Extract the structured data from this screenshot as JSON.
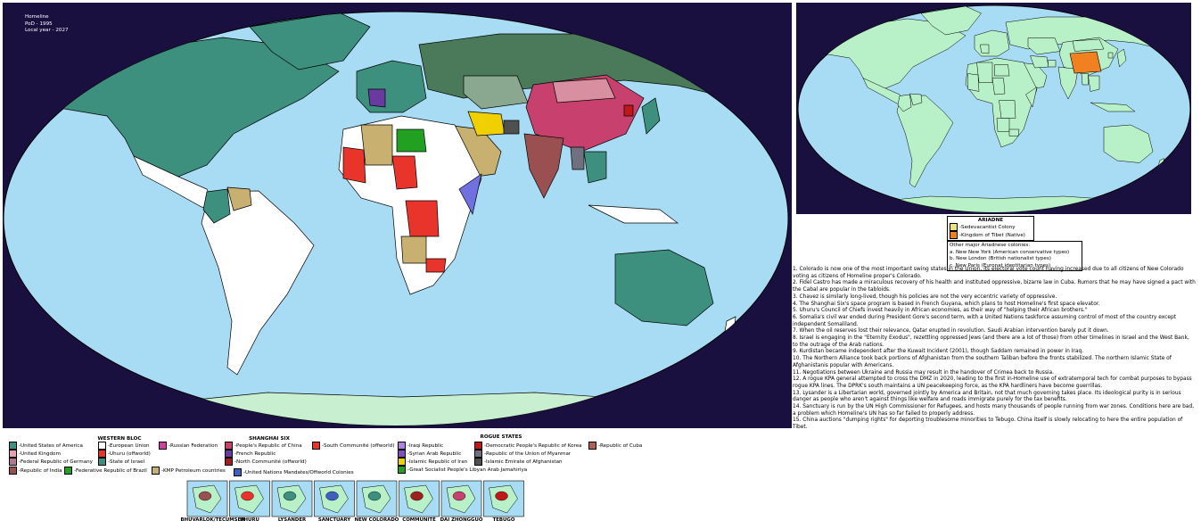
{
  "map_info": {
    "title": "Homeline",
    "pod": "PoD - 1995",
    "local_year": "Local year - 2027"
  },
  "ariadne": {
    "title": "ARIADNE",
    "entries": [
      {
        "label": "-Sedevacantist Colony",
        "color": "#f0e080"
      },
      {
        "label": "-Kingdom of Tibet (Native)",
        "color": "#f08020"
      }
    ],
    "other_heading": "Other major Ariadnese colonies:",
    "colonies": [
      "a. New New York (American conservative types)",
      "b. New London (British nationalist types)",
      "c. New Paris (Euronat identitarian types)"
    ]
  },
  "notes": [
    "1. Colorado is now one of the most important swing states in the Union, its electoral vote count having increased due to all citizens of New Colorado voting as citizens of Homeline proper's Colorado.",
    "2. Fidel Castro has made a miraculous recovery of his health and instituted oppressive, bizarre law in Cuba. Rumors that he may have signed a pact with the Cabal are popular in the tabloids.",
    "3. Chavez is similarly long-lived, though his policies are not the very eccentric variety of oppressive.",
    "4. The Shanghai Six's space program is based in French Guyana, which plans to host Homeline's first space elevator.",
    "5. Uhuru's Council of Chiefs invest heavily in African economies, as their way of \"helping their African brothers.\"",
    "6. Somalia's civil war ended during President Gore's second term, with a United Nations taskforce assuming control of most of the country except independent Somaliland.",
    "7. When the oil reserves lost their relevance, Qatar erupted in revolution. Saudi Arabian intervention barely put it down.",
    "8. Israel is engaging in the \"Eternity Exodus\", rezettling oppressed Jews (and there are a lot of those) from other timelines in Israel and the West Bank, to the outrage of the Arab nations.",
    "9. Kurdistan became independent after the Kuwait Incident (2001), though Saddam remained in power in Iraq.",
    "10. The Northern Alliance took back portions of Afghanistan from the southern Taliban before the fronts stabilized. The northern Islamic State of Afghanistanis popular with Americans.",
    "11. Negotiations between Ukraine and Russia may result in the handover of Crimea back to Russia.",
    "12. A rogue KPA general attempted to cross the DMZ in 2020, leading to the first in-Homeline use of extratemporal tech for combat purposes to bypass rogue KPA lines. The DPRK's south maintains a UN peacekeeping force, as the KPA hardliners have become guerrillas.",
    "13. Lysander is a Libertarian world, governed jointly by America and Britain, not that much governing takes place. Its ideological purity is in serious danger as people who aren't against things like welfare and roads immigrate purely for the tax benefits.",
    "14. Sanctuary is run by the UN High Commissioner for Refugees, and hosts many thousands of people running from war zones. Conditions here are bad, a problem which Homeline's UN has so far failed to properly address.",
    "15. China auctions \"dumping rights\" for deporting troublesome minorities to Tebugo. China itself is slowly relocating to here the entire population of Tibet."
  ],
  "legend": {
    "western_bloc": {
      "title": "WESTERN BLOC",
      "entries": [
        {
          "label": "-United States of America",
          "color": "#3d8f7e"
        },
        {
          "label": "-United Kingdom",
          "color": "#e8a0b0"
        },
        {
          "label": "-Federal Republic of Germany",
          "color": "#b07890"
        },
        {
          "label": "-European Union",
          "color": "#ffffff"
        },
        {
          "label": "-Uhuru (offworld)",
          "color": "#e8342a"
        },
        {
          "label": "-State of Israel",
          "color": "#3d8f7e"
        },
        {
          "label": "-Russian Federation",
          "color": "#d040a0"
        },
        {
          "label": "-Republic of India",
          "color": "#9a5050"
        },
        {
          "label": "-Federative Republic of Brazil",
          "color": "#22a022"
        },
        {
          "label": "-KMP Petroleum countries",
          "color": "#c8b070"
        },
        {
          "label": "-United Nations Mandates/Offworld Colonies",
          "color": "#4060c0"
        }
      ]
    },
    "shanghai_six": {
      "title": "SHANGHAI SIX",
      "entries": [
        {
          "label": "-People's Republic of China",
          "color": "#c8406e"
        },
        {
          "label": "-French Republic",
          "color": "#6a3aa0"
        },
        {
          "label": "-North Communité (offworld)",
          "color": "#a02020"
        },
        {
          "label": "-South Communité (offworld)",
          "color": "#e8342a"
        }
      ]
    },
    "rogue_states": {
      "title": "ROGUE STATES",
      "entries": [
        {
          "label": "-Iraqi Republic",
          "color": "#b080e0"
        },
        {
          "label": "-Syrian Arab Republic",
          "color": "#8050c0"
        },
        {
          "label": "-Islamic Republic of Iran",
          "color": "#f0d000"
        },
        {
          "label": "-Great Socialist People's Libyan Arab Jamahiriya",
          "color": "#22a022"
        },
        {
          "label": "-Democratic People's Republic of Korea",
          "color": "#c01818"
        },
        {
          "label": "-Republic of the Union of Myanmar",
          "color": "#707080"
        },
        {
          "label": "-Islamic Emirate of Afghanistan",
          "color": "#505050"
        },
        {
          "label": "-Republic of Cuba",
          "color": "#b06050"
        }
      ]
    }
  },
  "worlds": [
    "BHUVARLOK/TECUMSEH",
    "UHURU",
    "LYSANDER",
    "SANCTUARY",
    "NEW COLORADO",
    "COMMUNITÉ",
    "DAI ZHONGGUO",
    "TEBUGO"
  ]
}
